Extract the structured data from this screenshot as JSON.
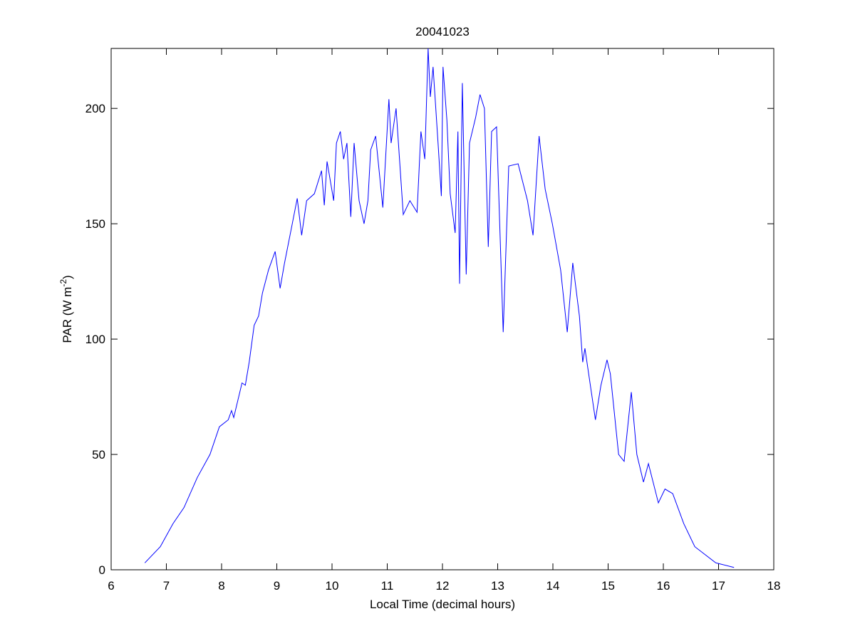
{
  "chart_data": {
    "type": "line",
    "title": "20041023",
    "xlabel": "Local Time (decimal hours)",
    "ylabel": [
      "PAR (W m",
      "-2",
      ")"
    ],
    "xlim": [
      6,
      18
    ],
    "ylim": [
      0,
      226
    ],
    "xticks": [
      6,
      7,
      8,
      9,
      10,
      11,
      12,
      13,
      14,
      15,
      16,
      17,
      18
    ],
    "yticks": [
      0,
      50,
      100,
      150,
      200
    ],
    "series": [
      {
        "color": "#0000ff",
        "x": [
          6.61,
          6.89,
          7.12,
          7.32,
          7.56,
          7.79,
          7.96,
          8.12,
          8.18,
          8.22,
          8.37,
          8.43,
          8.5,
          8.59,
          8.67,
          8.74,
          8.85,
          8.97,
          9.06,
          9.14,
          9.28,
          9.37,
          9.45,
          9.54,
          9.68,
          9.81,
          9.86,
          9.91,
          10.03,
          10.08,
          10.15,
          10.21,
          10.27,
          10.34,
          10.4,
          10.49,
          10.58,
          10.65,
          10.7,
          10.79,
          10.92,
          11.03,
          11.07,
          11.16,
          11.29,
          11.41,
          11.54,
          11.61,
          11.68,
          11.74,
          11.78,
          11.83,
          11.92,
          11.98,
          12.01,
          12.08,
          12.14,
          12.23,
          12.28,
          12.31,
          12.36,
          12.43,
          12.49,
          12.6,
          12.68,
          12.76,
          12.83,
          12.89,
          12.98,
          13.1,
          13.2,
          13.37,
          13.54,
          13.64,
          13.75,
          13.86,
          13.99,
          14.14,
          14.26,
          14.36,
          14.48,
          14.54,
          14.58,
          14.77,
          14.87,
          14.98,
          15.04,
          15.19,
          15.29,
          15.42,
          15.52,
          15.64,
          15.73,
          15.91,
          16.03,
          16.17,
          16.37,
          16.57,
          16.95,
          17.28
        ],
        "values": [
          3,
          10,
          20,
          27,
          40,
          50,
          62,
          65,
          69,
          66,
          81,
          80,
          90,
          106,
          110,
          120,
          130,
          138,
          122,
          133,
          150,
          161,
          145,
          160,
          163,
          173,
          158,
          177,
          160,
          185,
          190,
          178,
          185,
          153,
          185,
          160,
          150,
          160,
          182,
          188,
          157,
          204,
          185,
          200,
          154,
          160,
          155,
          190,
          178,
          226,
          205,
          218,
          185,
          162,
          218,
          195,
          163,
          146,
          190,
          124,
          211,
          128,
          185,
          196,
          206,
          200,
          140,
          190,
          192,
          103,
          175,
          176,
          160,
          145,
          188,
          165,
          150,
          130,
          103,
          133,
          110,
          90,
          96,
          65,
          80,
          91,
          85,
          50,
          47,
          77,
          50,
          38,
          46,
          29,
          35,
          33,
          20,
          10,
          3,
          1
        ]
      }
    ]
  }
}
